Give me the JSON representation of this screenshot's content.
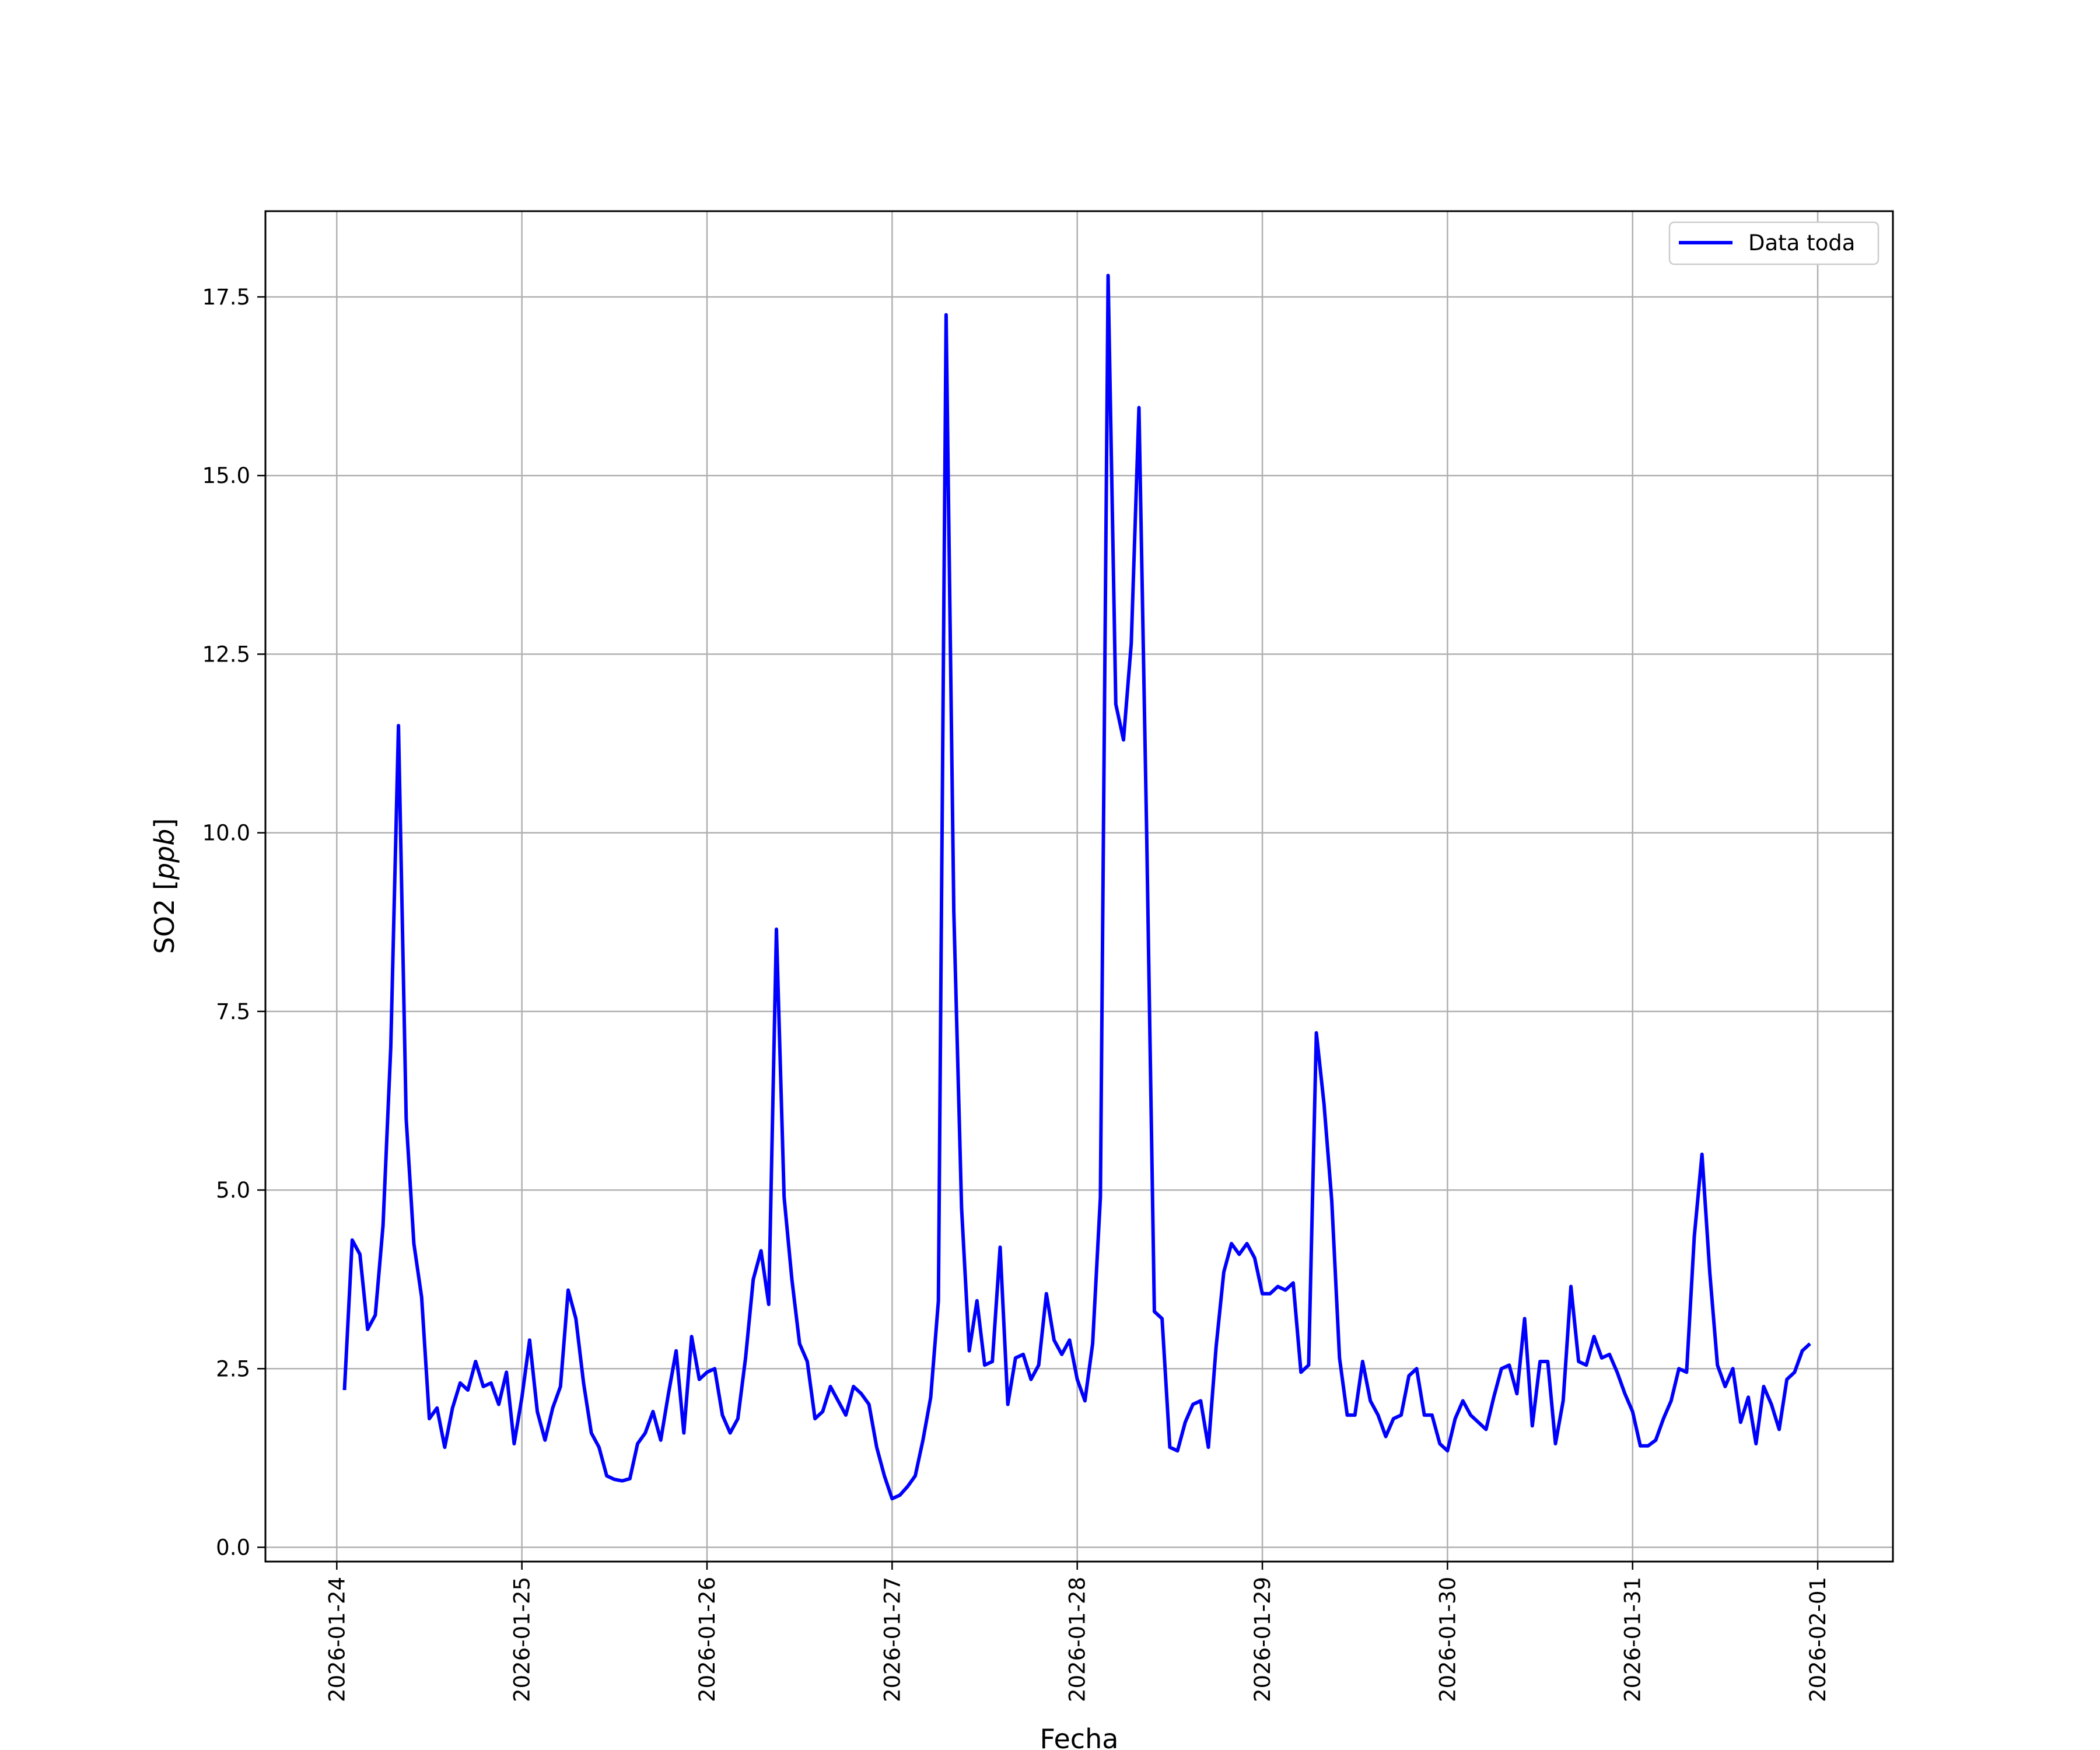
{
  "chart_data": {
    "type": "line",
    "title": "",
    "xlabel": "Fecha",
    "ylabel": "SO2 [ppb]",
    "ylabel_main": "SO2 [",
    "ylabel_unit": "ppb",
    "ylabel_close": "]",
    "xlim": [
      "2026-01-23T14:45",
      "2026-02-01T09:45"
    ],
    "ylim": [
      -0.2,
      18.7
    ],
    "grid": true,
    "legend_position": "top-right",
    "x_ticks": [
      "2026-01-24",
      "2026-01-25",
      "2026-01-26",
      "2026-01-27",
      "2026-01-28",
      "2026-01-29",
      "2026-01-30",
      "2026-01-31",
      "2026-02-01"
    ],
    "y_ticks": [
      "0.0",
      "2.5",
      "5.0",
      "7.5",
      "10.0",
      "12.5",
      "15.0",
      "17.5"
    ],
    "series": [
      {
        "name": "Data toda",
        "color": "#0000ff",
        "start": "2026-01-24T01:00",
        "step_hours": 1,
        "values": [
          2.2,
          4.3,
          4.1,
          3.05,
          3.25,
          4.5,
          7.0,
          11.5,
          6.0,
          4.25,
          3.5,
          1.8,
          1.95,
          1.4,
          1.95,
          2.3,
          2.2,
          2.6,
          2.25,
          2.3,
          2.0,
          2.45,
          1.45,
          2.1,
          2.9,
          1.9,
          1.5,
          1.95,
          2.25,
          3.6,
          3.2,
          2.3,
          1.6,
          1.4,
          1.0,
          0.95,
          0.93,
          0.96,
          1.45,
          1.6,
          1.9,
          1.5,
          2.15,
          2.75,
          1.6,
          2.95,
          2.35,
          2.45,
          2.5,
          1.85,
          1.6,
          1.8,
          2.65,
          3.75,
          4.15,
          3.4,
          8.65,
          4.9,
          3.75,
          2.85,
          2.6,
          1.8,
          1.9,
          2.25,
          2.05,
          1.85,
          2.25,
          2.15,
          2.0,
          1.4,
          1.0,
          0.68,
          0.73,
          0.85,
          1.0,
          1.5,
          2.1,
          3.45,
          17.25,
          8.9,
          4.75,
          2.75,
          3.45,
          2.55,
          2.6,
          4.2,
          2.0,
          2.65,
          2.7,
          2.35,
          2.55,
          3.55,
          2.9,
          2.7,
          2.9,
          2.35,
          2.05,
          2.85,
          4.9,
          17.8,
          11.8,
          11.3,
          12.65,
          15.95,
          10.0,
          3.3,
          3.2,
          1.4,
          1.35,
          1.75,
          2.0,
          2.05,
          1.4,
          2.8,
          3.85,
          4.25,
          4.1,
          4.25,
          4.05,
          3.55,
          3.55,
          3.65,
          3.6,
          3.7,
          2.45,
          2.55,
          7.2,
          6.2,
          4.85,
          2.65,
          1.85,
          1.85,
          2.6,
          2.05,
          1.85,
          1.55,
          1.8,
          1.85,
          2.4,
          2.5,
          1.85,
          1.85,
          1.45,
          1.35,
          1.8,
          2.05,
          1.85,
          1.75,
          1.65,
          2.1,
          2.5,
          2.55,
          2.15,
          3.2,
          1.7,
          2.6,
          2.6,
          1.45,
          2.05,
          3.65,
          2.6,
          2.55,
          2.95,
          2.65,
          2.7,
          2.45,
          2.15,
          1.9,
          1.42,
          1.42,
          1.5,
          1.8,
          2.05,
          2.5,
          2.45,
          4.35,
          5.5,
          3.85,
          2.55,
          2.25,
          2.5,
          1.75,
          2.1,
          1.45,
          2.25,
          2.0,
          1.65,
          2.35,
          2.45,
          2.75,
          2.85
        ]
      }
    ]
  }
}
